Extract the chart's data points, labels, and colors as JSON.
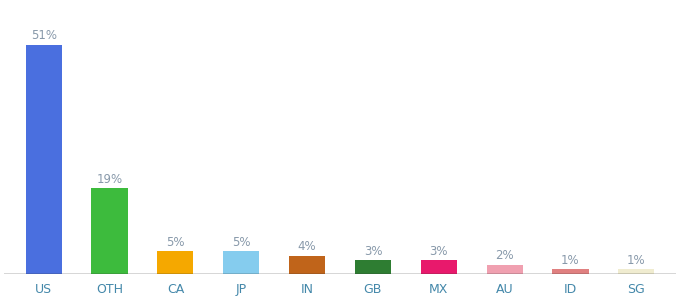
{
  "categories": [
    "US",
    "OTH",
    "CA",
    "JP",
    "IN",
    "GB",
    "MX",
    "AU",
    "ID",
    "SG"
  ],
  "values": [
    51,
    19,
    5,
    5,
    4,
    3,
    3,
    2,
    1,
    1
  ],
  "labels": [
    "51%",
    "19%",
    "5%",
    "5%",
    "4%",
    "3%",
    "3%",
    "2%",
    "1%",
    "1%"
  ],
  "colors": [
    "#4a6fdf",
    "#3dbb3d",
    "#f5a800",
    "#85ccee",
    "#c0641a",
    "#2e7d32",
    "#e8196c",
    "#f0a0b0",
    "#e08080",
    "#f0ecd0"
  ],
  "ylim": [
    0,
    60
  ],
  "label_color": "#8899aa",
  "label_fontsize": 8.5,
  "tick_fontsize": 9,
  "tick_color": "#4488aa",
  "bar_width": 0.55,
  "bottom_line_color": "#333333",
  "figsize": [
    6.8,
    3.0
  ],
  "dpi": 100
}
